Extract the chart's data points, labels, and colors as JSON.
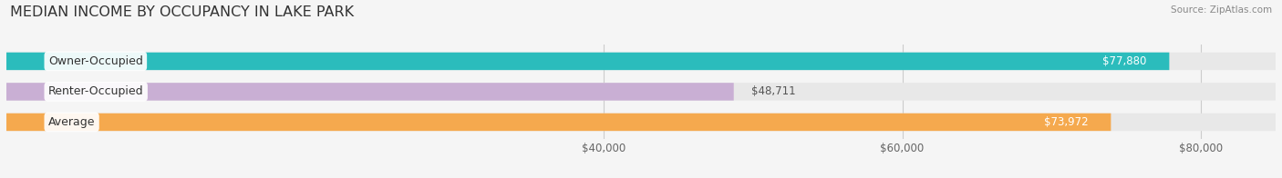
{
  "title": "MEDIAN INCOME BY OCCUPANCY IN LAKE PARK",
  "source": "Source: ZipAtlas.com",
  "categories": [
    "Owner-Occupied",
    "Renter-Occupied",
    "Average"
  ],
  "values": [
    77880,
    48711,
    73972
  ],
  "bar_colors": [
    "#2bbcbc",
    "#c9afd4",
    "#f5a94e"
  ],
  "xlim": [
    0,
    85000
  ],
  "xticks": [
    40000,
    60000,
    80000
  ],
  "xtick_labels": [
    "$40,000",
    "$60,000",
    "$80,000"
  ],
  "bar_height": 0.58,
  "background_color": "#f5f5f5",
  "bar_bg_color": "#e8e8e8",
  "title_fontsize": 11.5,
  "label_fontsize": 9,
  "value_fontsize": 8.5,
  "tick_fontsize": 8.5,
  "source_fontsize": 7.5
}
